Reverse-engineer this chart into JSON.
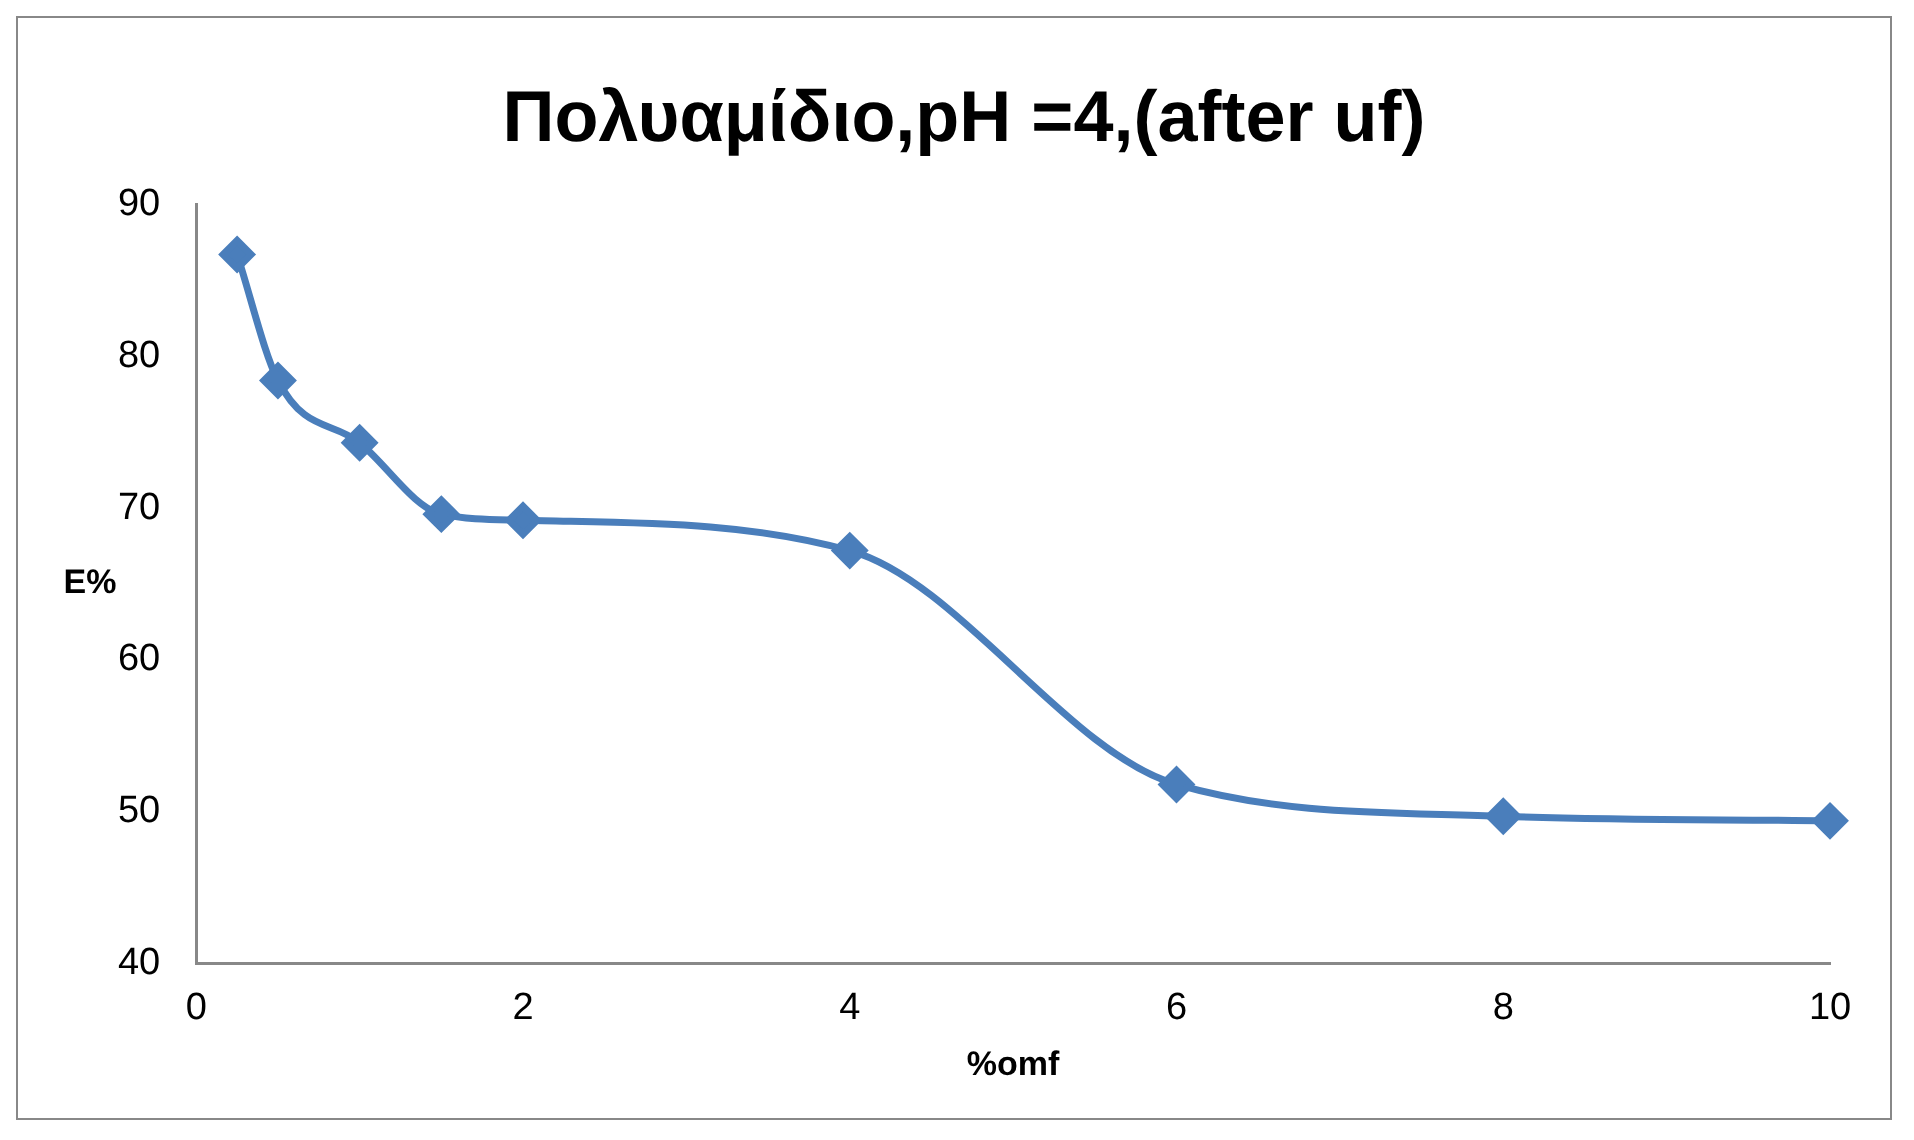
{
  "chart_data": {
    "type": "line",
    "title": "Πολυαμίδιο,pH =4,(after uf)",
    "xlabel": "%omf",
    "ylabel": "E%",
    "x": [
      0.25,
      0.5,
      1,
      1.5,
      2,
      4,
      6,
      8,
      10
    ],
    "series": [
      {
        "color": "#4a7ebb",
        "values": [
          86.7,
          78.4,
          74.3,
          69.6,
          69.2,
          67.2,
          51.8,
          49.7,
          49.4
        ]
      }
    ],
    "xlim": [
      0,
      10
    ],
    "xticks": [
      0,
      2,
      4,
      6,
      8,
      10
    ],
    "ylim": [
      40,
      90
    ],
    "yticks": [
      40,
      50,
      60,
      70,
      80,
      90
    ],
    "grid": false,
    "legend": false,
    "marker": "diamond",
    "line_style": "solid"
  }
}
